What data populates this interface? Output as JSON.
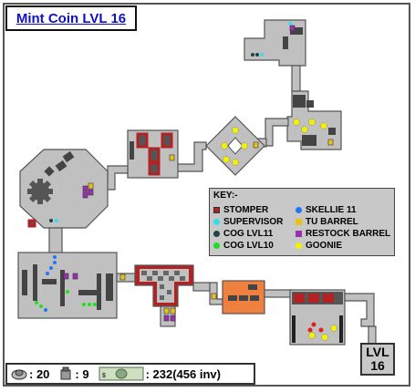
{
  "title": "Mint Coin LVL 16",
  "key": {
    "heading": "KEY:-",
    "items": [
      {
        "label": "STOMPER",
        "color": "#b22222",
        "shape": "square",
        "col": 0,
        "row": 0
      },
      {
        "label": "SUPERVISOR",
        "color": "#33ddee",
        "shape": "dot",
        "col": 0,
        "row": 1
      },
      {
        "label": "COG LVL11",
        "color": "#224444",
        "shape": "dot",
        "col": 0,
        "row": 2
      },
      {
        "label": "COG LVL10",
        "color": "#22dd22",
        "shape": "dot",
        "col": 0,
        "row": 3
      },
      {
        "label": "SKELLIE 11",
        "color": "#2277ee",
        "shape": "dot",
        "col": 1,
        "row": 0
      },
      {
        "label": "TU BARREL",
        "color": "#e6c21a",
        "shape": "barrel",
        "col": 1,
        "row": 1
      },
      {
        "label": "RESTOCK BARREL",
        "color": "#9b2fb0",
        "shape": "barrel",
        "col": 1,
        "row": 2
      },
      {
        "label": "GOONIE",
        "color": "#f2f200",
        "shape": "dot",
        "col": 1,
        "row": 3
      }
    ]
  },
  "level_badge": {
    "line1": "LVL",
    "line2": "16"
  },
  "footer": {
    "gag_icon": "cog-gag-icon",
    "gag_count": ": 20",
    "barrel_icon": "barrel-icon",
    "barrel_count": ": 9",
    "money_icon": "jellybean-bill-icon",
    "money_count": ": 232(456  inv)"
  },
  "colors": {
    "floor": "#c0c0c0",
    "wall": "#555555",
    "stomper": "#b22222",
    "orange_room": "#f08040"
  }
}
